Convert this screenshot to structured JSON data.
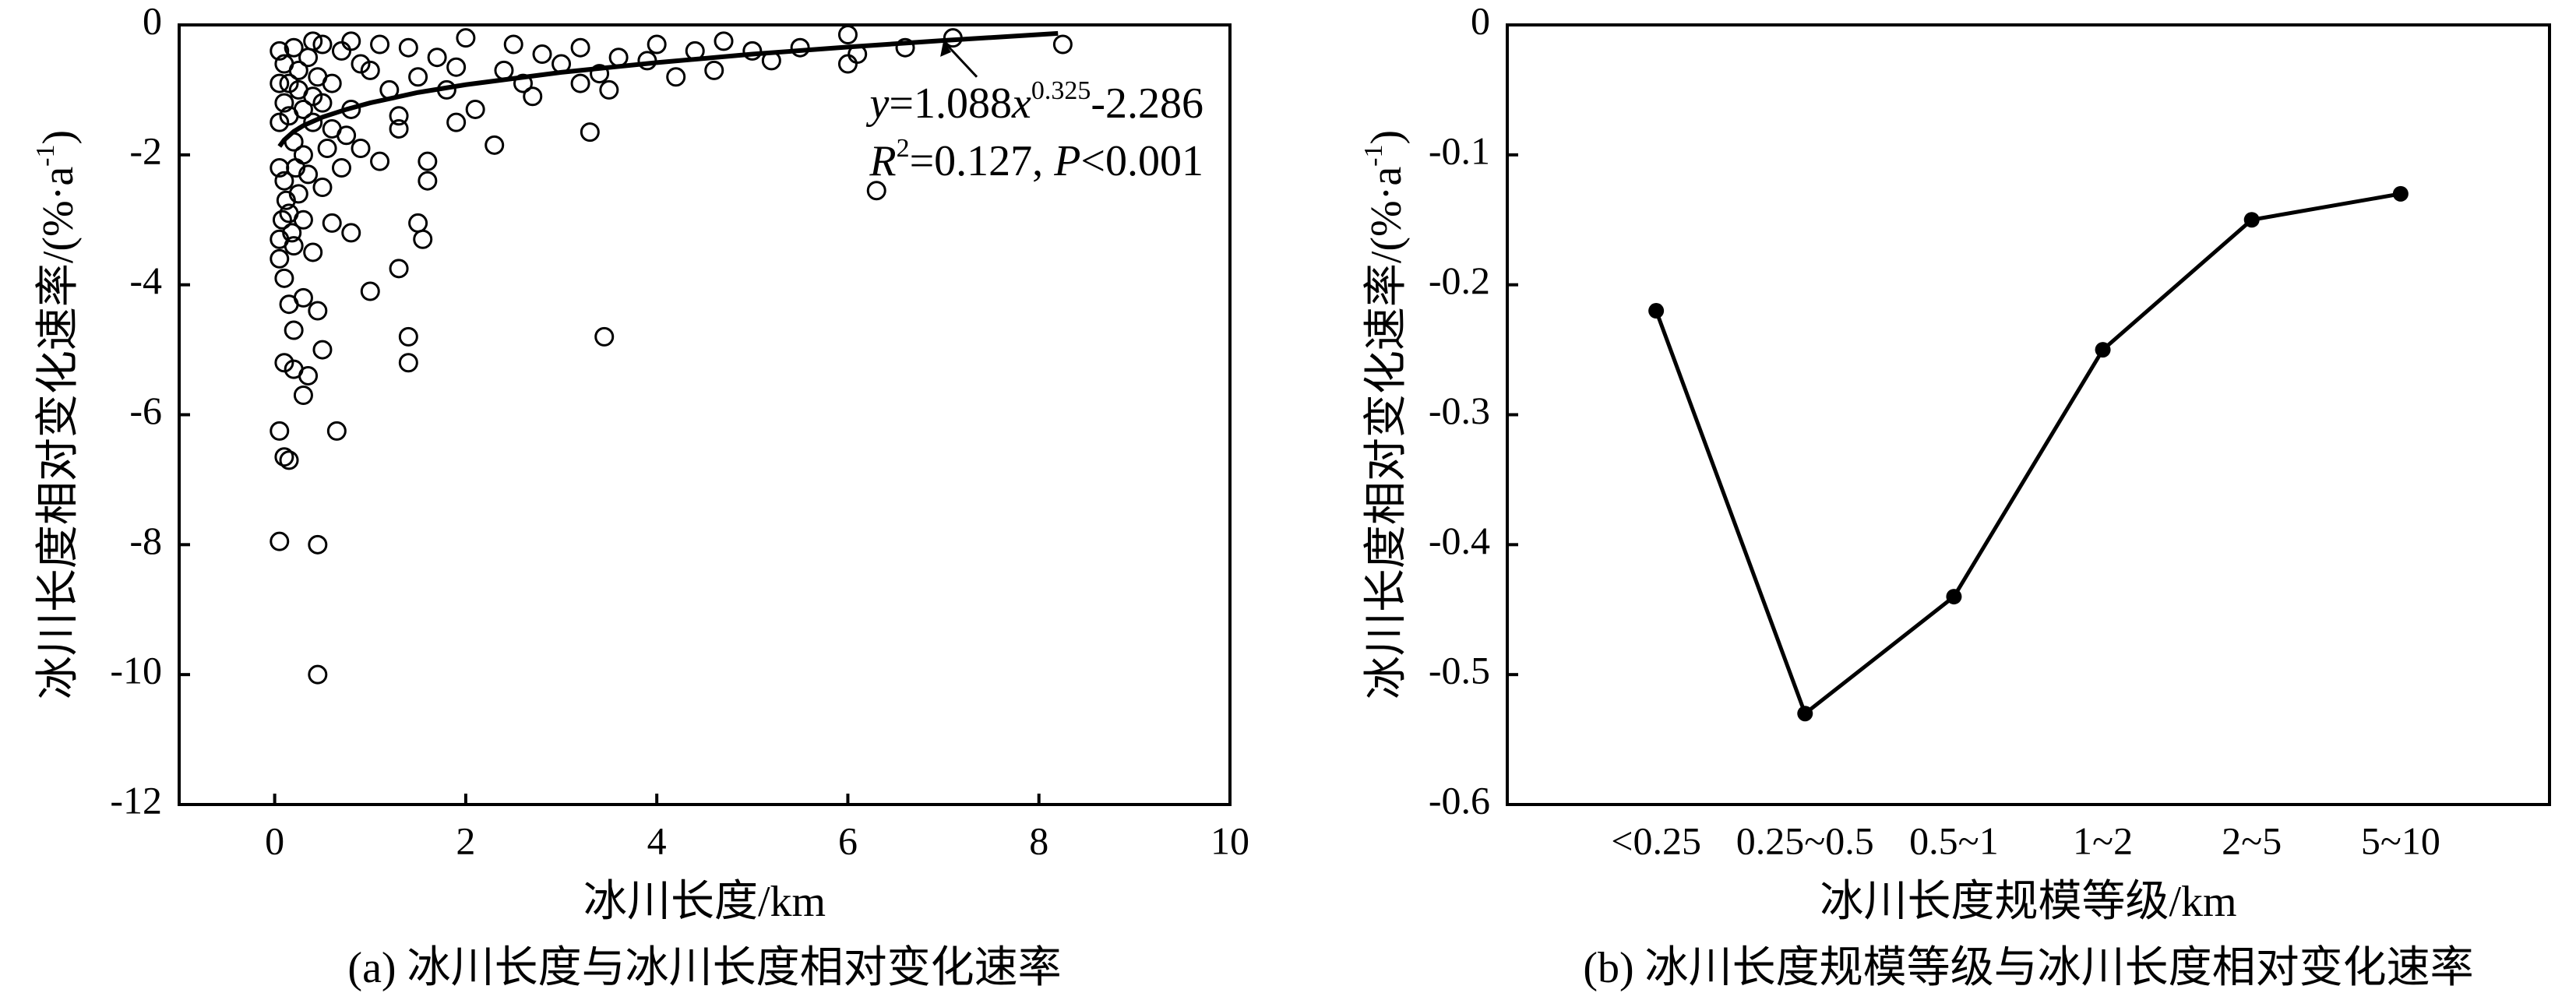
{
  "chart_data": [
    {
      "type": "scatter",
      "xlabel": "冰川长度/km",
      "ylabel": [
        "冰川长度相对变化速率/(%·a",
        "-1",
        ")"
      ],
      "caption": "(a) 冰川长度与冰川长度相对变化速率",
      "annotations": [
        [
          "y",
          "=1.088",
          "x",
          "0.325",
          "-2.286"
        ],
        [
          "R",
          "2",
          "=0.127, ",
          "P",
          "<0.001"
        ]
      ],
      "xlim": [
        -1,
        10
      ],
      "xticks": [
        0,
        2,
        4,
        6,
        8,
        10
      ],
      "ylim": [
        -12,
        0
      ],
      "yticks": [
        -12,
        -10,
        -8,
        -6,
        -4,
        -2,
        0
      ],
      "color": "#000000",
      "x": [
        0.05,
        0.1,
        0.15,
        0.05,
        0.45,
        0.45,
        0.65,
        0.1,
        0.2,
        0.3,
        0.5,
        0.35,
        0.2,
        0.3,
        0.15,
        0.45,
        1.0,
        1.3,
        1.4,
        1.4,
        3.45,
        6.3,
        3.3,
        1.5,
        1.55,
        0.8,
        0.6,
        0.05,
        0.1,
        0.05,
        0.2,
        0.3,
        0.4,
        0.15,
        0.25,
        0.1,
        0.05,
        0.35,
        0.5,
        0.7,
        1.1,
        1.6,
        1.6,
        0.9,
        2.3,
        1.3,
        0.6,
        0.2,
        0.05,
        0.1,
        0.3,
        0.4,
        0.8,
        1.2,
        2.1,
        2.7,
        3.2,
        3.5,
        4.2,
        4.6,
        5.2,
        6.0,
        6.1,
        6.6,
        7.1,
        8.25,
        6.0,
        5.0,
        4.7,
        4.0,
        3.6,
        3.2,
        2.8,
        2.5,
        2.0,
        1.7,
        1.4,
        1.1,
        0.9,
        0.7,
        0.5,
        0.35,
        0.2,
        0.1,
        0.05,
        0.15,
        0.25,
        0.45,
        0.6,
        1.0,
        1.5,
        1.9,
        2.4,
        3.0,
        3.9,
        4.4,
        5.5,
        0.3,
        0.55,
        0.75,
        0.4,
        0.15,
        0.25,
        0.05,
        0.12,
        0.08,
        0.18,
        0.22,
        0.5,
        1.9,
        2.6,
        3.4,
        0.8,
        0.4,
        1.3,
        1.8
      ],
      "values": [
        -6.25,
        -6.65,
        -6.7,
        -7.95,
        -8.0,
        -10.0,
        -6.25,
        -5.2,
        -5.3,
        -5.7,
        -5.0,
        -5.4,
        -4.7,
        -4.2,
        -4.3,
        -4.4,
        -4.1,
        -3.75,
        -4.8,
        -5.2,
        -4.8,
        -2.55,
        -1.65,
        -3.05,
        -3.3,
        -3.2,
        -3.05,
        -3.6,
        -3.9,
        -3.3,
        -3.4,
        -3.0,
        -3.5,
        -2.9,
        -2.6,
        -2.4,
        -2.2,
        -2.3,
        -2.5,
        -2.2,
        -2.1,
        -2.1,
        -2.4,
        -1.9,
        -1.85,
        -1.6,
        -1.6,
        -1.8,
        -1.5,
        -1.2,
        -1.3,
        -1.1,
        -1.3,
        -1.0,
        -1.3,
        -1.1,
        -0.9,
        -1.0,
        -0.8,
        -0.7,
        -0.55,
        -0.6,
        -0.45,
        -0.35,
        -0.2,
        -0.3,
        -0.15,
        -0.4,
        -0.25,
        -0.3,
        -0.5,
        -0.35,
        -0.45,
        -0.3,
        -0.2,
        -0.5,
        -0.35,
        -0.3,
        -0.6,
        -0.4,
        -0.3,
        -0.5,
        -0.35,
        -0.6,
        -0.4,
        -0.9,
        -0.7,
        -0.8,
        -0.9,
        -0.7,
        -0.8,
        -0.65,
        -0.7,
        -0.6,
        -0.55,
        -0.4,
        -0.35,
        -2.0,
        -1.9,
        -1.7,
        -1.5,
        -1.4,
        -1.0,
        -0.9,
        -2.7,
        -3.0,
        -3.2,
        -2.2,
        -1.2,
        -1.5,
        -0.9,
        -0.75,
        -0.25,
        -0.25,
        -1.4,
        -1.0
      ],
      "fit": {
        "x": [
          0.05,
          0.1,
          0.2,
          0.3,
          0.5,
          0.75,
          1,
          1.5,
          2,
          3,
          4,
          5,
          6,
          7,
          8.2
        ],
        "values": [
          -1.87,
          -1.77,
          -1.64,
          -1.55,
          -1.42,
          -1.3,
          -1.2,
          -1.04,
          -0.92,
          -0.73,
          -0.58,
          -0.45,
          -0.34,
          -0.24,
          -0.13
        ]
      }
    },
    {
      "type": "line",
      "xlabel": "冰川长度规模等级/km",
      "ylabel": [
        "冰川长度相对变化速率/(%·a",
        "-1",
        ")"
      ],
      "caption": "(b) 冰川长度规模等级与冰川长度相对变化速率",
      "categories": [
        "<0.25",
        "0.25~0.5",
        "0.5~1",
        "1~2",
        "2~5",
        "5~10"
      ],
      "values": [
        -0.22,
        -0.53,
        -0.44,
        -0.25,
        -0.15,
        -0.13
      ],
      "ylim": [
        -0.6,
        0
      ],
      "yticks": [
        -0.6,
        -0.5,
        -0.4,
        -0.3,
        -0.2,
        -0.1,
        0
      ],
      "color": "#000000"
    }
  ]
}
